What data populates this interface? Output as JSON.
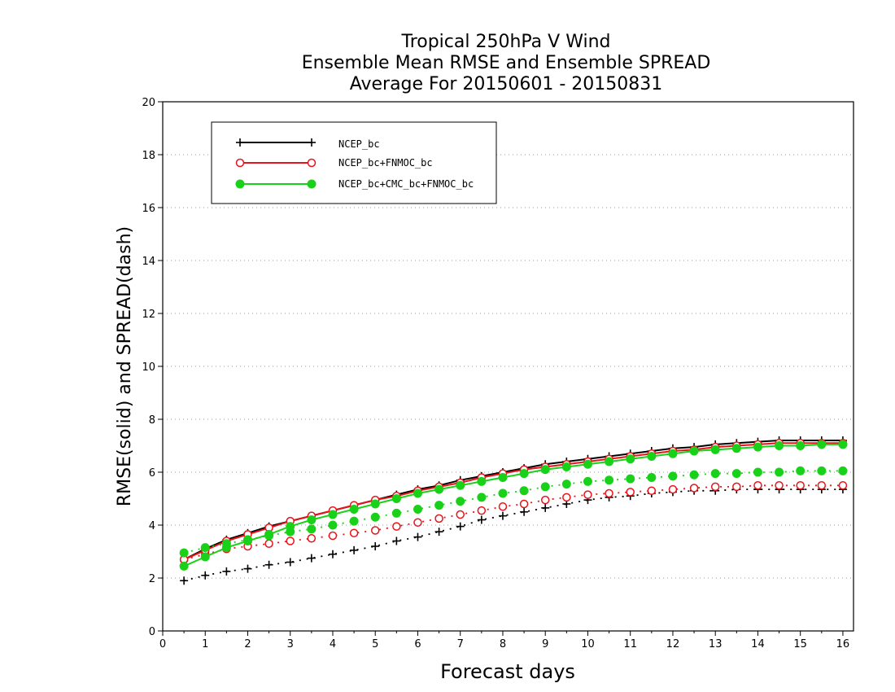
{
  "chart_data": {
    "type": "line",
    "title_lines": [
      "Tropical 250hPa V Wind",
      "Ensemble Mean RMSE and Ensemble SPREAD",
      "Average For 20150601 - 20150831"
    ],
    "xlabel": "Forecast days",
    "ylabel": "RMSE(solid) and SPREAD(dash)",
    "xlim": [
      0,
      16.25
    ],
    "ylim": [
      0,
      20
    ],
    "x_ticks": [
      0,
      1,
      2,
      3,
      4,
      5,
      6,
      7,
      8,
      9,
      10,
      11,
      12,
      13,
      14,
      15,
      16
    ],
    "y_ticks": [
      0,
      2,
      4,
      6,
      8,
      10,
      12,
      14,
      16,
      18,
      20
    ],
    "grid": "horizontal dotted",
    "legend_position": "top-left",
    "x": [
      0.5,
      1,
      1.5,
      2,
      2.5,
      3,
      3.5,
      4,
      4.5,
      5,
      5.5,
      6,
      6.5,
      7,
      7.5,
      8,
      8.5,
      9,
      9.5,
      10,
      10.5,
      11,
      11.5,
      12,
      12.5,
      13,
      13.5,
      14,
      14.5,
      15,
      15.5,
      16
    ],
    "series": [
      {
        "name": "NCEP_bc",
        "color": "#000000",
        "marker": "plus",
        "rmse": [
          2.7,
          3.1,
          3.45,
          3.7,
          3.95,
          4.15,
          4.35,
          4.55,
          4.75,
          4.95,
          5.15,
          5.35,
          5.5,
          5.7,
          5.85,
          6.0,
          6.15,
          6.3,
          6.4,
          6.5,
          6.6,
          6.7,
          6.8,
          6.9,
          6.95,
          7.05,
          7.1,
          7.15,
          7.2,
          7.2,
          7.2,
          7.2
        ],
        "spread": [
          1.9,
          2.1,
          2.25,
          2.35,
          2.5,
          2.6,
          2.75,
          2.9,
          3.05,
          3.2,
          3.4,
          3.55,
          3.75,
          3.95,
          4.2,
          4.35,
          4.5,
          4.65,
          4.8,
          4.95,
          5.05,
          5.1,
          5.2,
          5.25,
          5.3,
          5.3,
          5.35,
          5.35,
          5.35,
          5.35,
          5.35,
          5.35
        ]
      },
      {
        "name": "NCEP_bc+FNMOC_bc",
        "color": "#e8141b",
        "marker": "open-circle",
        "rmse": [
          2.7,
          3.05,
          3.4,
          3.65,
          3.9,
          4.15,
          4.35,
          4.55,
          4.75,
          4.95,
          5.1,
          5.3,
          5.45,
          5.6,
          5.8,
          5.95,
          6.1,
          6.2,
          6.3,
          6.4,
          6.5,
          6.6,
          6.7,
          6.8,
          6.85,
          6.95,
          7.0,
          7.05,
          7.1,
          7.1,
          7.1,
          7.1
        ],
        "spread": [
          2.7,
          2.9,
          3.1,
          3.2,
          3.3,
          3.4,
          3.5,
          3.6,
          3.7,
          3.8,
          3.95,
          4.1,
          4.25,
          4.4,
          4.55,
          4.7,
          4.8,
          4.95,
          5.05,
          5.15,
          5.2,
          5.25,
          5.3,
          5.35,
          5.4,
          5.45,
          5.45,
          5.5,
          5.5,
          5.5,
          5.5,
          5.5
        ]
      },
      {
        "name": "NCEP_bc+CMC_bc+FNMOC_bc",
        "color": "#1ad11a",
        "marker": "filled-circle",
        "rmse": [
          2.45,
          2.8,
          3.15,
          3.4,
          3.65,
          3.95,
          4.2,
          4.4,
          4.6,
          4.8,
          5.0,
          5.2,
          5.35,
          5.5,
          5.65,
          5.8,
          5.95,
          6.1,
          6.2,
          6.3,
          6.4,
          6.5,
          6.6,
          6.7,
          6.8,
          6.85,
          6.9,
          6.95,
          7.0,
          7.0,
          7.05,
          7.05
        ],
        "spread": [
          2.95,
          3.15,
          3.3,
          3.45,
          3.6,
          3.75,
          3.85,
          4.0,
          4.15,
          4.3,
          4.45,
          4.6,
          4.75,
          4.9,
          5.05,
          5.2,
          5.3,
          5.45,
          5.55,
          5.65,
          5.7,
          5.75,
          5.8,
          5.85,
          5.9,
          5.95,
          5.95,
          6.0,
          6.0,
          6.05,
          6.05,
          6.05
        ]
      }
    ]
  }
}
